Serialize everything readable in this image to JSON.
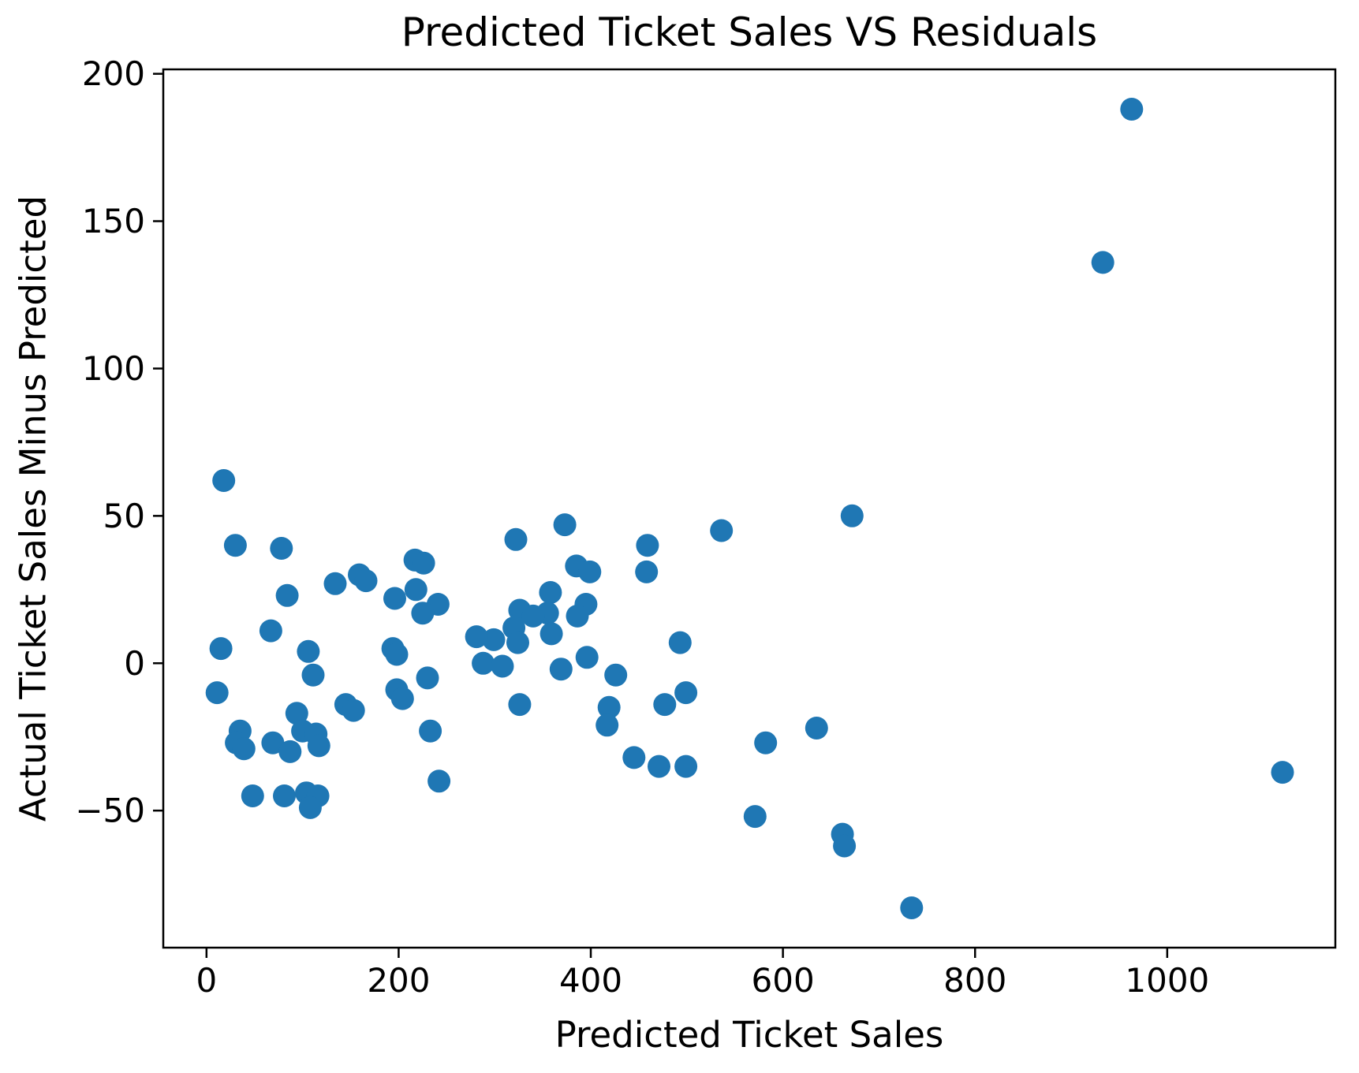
{
  "chart_data": {
    "type": "scatter",
    "title": "Predicted Ticket Sales VS Residuals",
    "xlabel": "Predicted Ticket Sales",
    "ylabel": "Actual Ticket Sales Minus Predicted",
    "xlim": [
      -45,
      1175
    ],
    "ylim": [
      -96.5,
      201.5
    ],
    "grid": false,
    "legend": "none",
    "x_ticks": [
      {
        "value": 0,
        "label": "0"
      },
      {
        "value": 200,
        "label": "200"
      },
      {
        "value": 400,
        "label": "400"
      },
      {
        "value": 600,
        "label": "600"
      },
      {
        "value": 800,
        "label": "800"
      },
      {
        "value": 1000,
        "label": "1000"
      }
    ],
    "y_ticks": [
      {
        "value": 200,
        "label": "200"
      },
      {
        "value": 150,
        "label": "150"
      },
      {
        "value": 100,
        "label": "100"
      },
      {
        "value": 50,
        "label": "50"
      },
      {
        "value": 0,
        "label": "0"
      },
      {
        "value": -50,
        "label": "−50"
      }
    ],
    "marker": {
      "color": "#1f77b4",
      "radius_px": 14.5
    },
    "axis_color": "#000000",
    "background_color": "#ffffff",
    "points": [
      [
        18,
        62
      ],
      [
        30,
        40
      ],
      [
        78,
        39
      ],
      [
        84,
        23
      ],
      [
        134,
        27
      ],
      [
        159,
        30
      ],
      [
        166,
        28
      ],
      [
        196,
        22
      ],
      [
        217,
        35
      ],
      [
        226,
        34
      ],
      [
        218,
        25
      ],
      [
        241,
        20
      ],
      [
        225,
        17
      ],
      [
        67,
        11
      ],
      [
        15,
        5
      ],
      [
        106,
        4
      ],
      [
        194,
        5
      ],
      [
        198,
        3
      ],
      [
        111,
        -4
      ],
      [
        11,
        -10
      ],
      [
        230,
        -5
      ],
      [
        198,
        -9
      ],
      [
        204,
        -12
      ],
      [
        145,
        -14
      ],
      [
        153,
        -16
      ],
      [
        94,
        -17
      ],
      [
        35,
        -23
      ],
      [
        31,
        -27
      ],
      [
        39,
        -29
      ],
      [
        69,
        -27
      ],
      [
        87,
        -30
      ],
      [
        100,
        -23
      ],
      [
        114,
        -24
      ],
      [
        117,
        -28
      ],
      [
        233,
        -23
      ],
      [
        242,
        -40
      ],
      [
        48,
        -45
      ],
      [
        81,
        -45
      ],
      [
        104,
        -44
      ],
      [
        116,
        -45
      ],
      [
        108,
        -49
      ],
      [
        322,
        42
      ],
      [
        373,
        47
      ],
      [
        536,
        45
      ],
      [
        672,
        50
      ],
      [
        459,
        40
      ],
      [
        385,
        33
      ],
      [
        399,
        31
      ],
      [
        458,
        31
      ],
      [
        358,
        24
      ],
      [
        395,
        20
      ],
      [
        386,
        16
      ],
      [
        326,
        18
      ],
      [
        355,
        17
      ],
      [
        340,
        16
      ],
      [
        320,
        12
      ],
      [
        359,
        10
      ],
      [
        299,
        8
      ],
      [
        281,
        9
      ],
      [
        324,
        7
      ],
      [
        288,
        0
      ],
      [
        308,
        -1
      ],
      [
        369,
        -2
      ],
      [
        396,
        2
      ],
      [
        426,
        -4
      ],
      [
        326,
        -14
      ],
      [
        419,
        -15
      ],
      [
        417,
        -21
      ],
      [
        445,
        -32
      ],
      [
        471,
        -35
      ],
      [
        499,
        -35
      ],
      [
        582,
        -27
      ],
      [
        635,
        -22
      ],
      [
        499,
        -10
      ],
      [
        477,
        -14
      ],
      [
        493,
        7
      ],
      [
        571,
        -52
      ],
      [
        662,
        -58
      ],
      [
        664,
        -62
      ],
      [
        734,
        -83
      ],
      [
        1120,
        -37
      ],
      [
        933,
        136
      ],
      [
        963,
        188
      ]
    ]
  }
}
